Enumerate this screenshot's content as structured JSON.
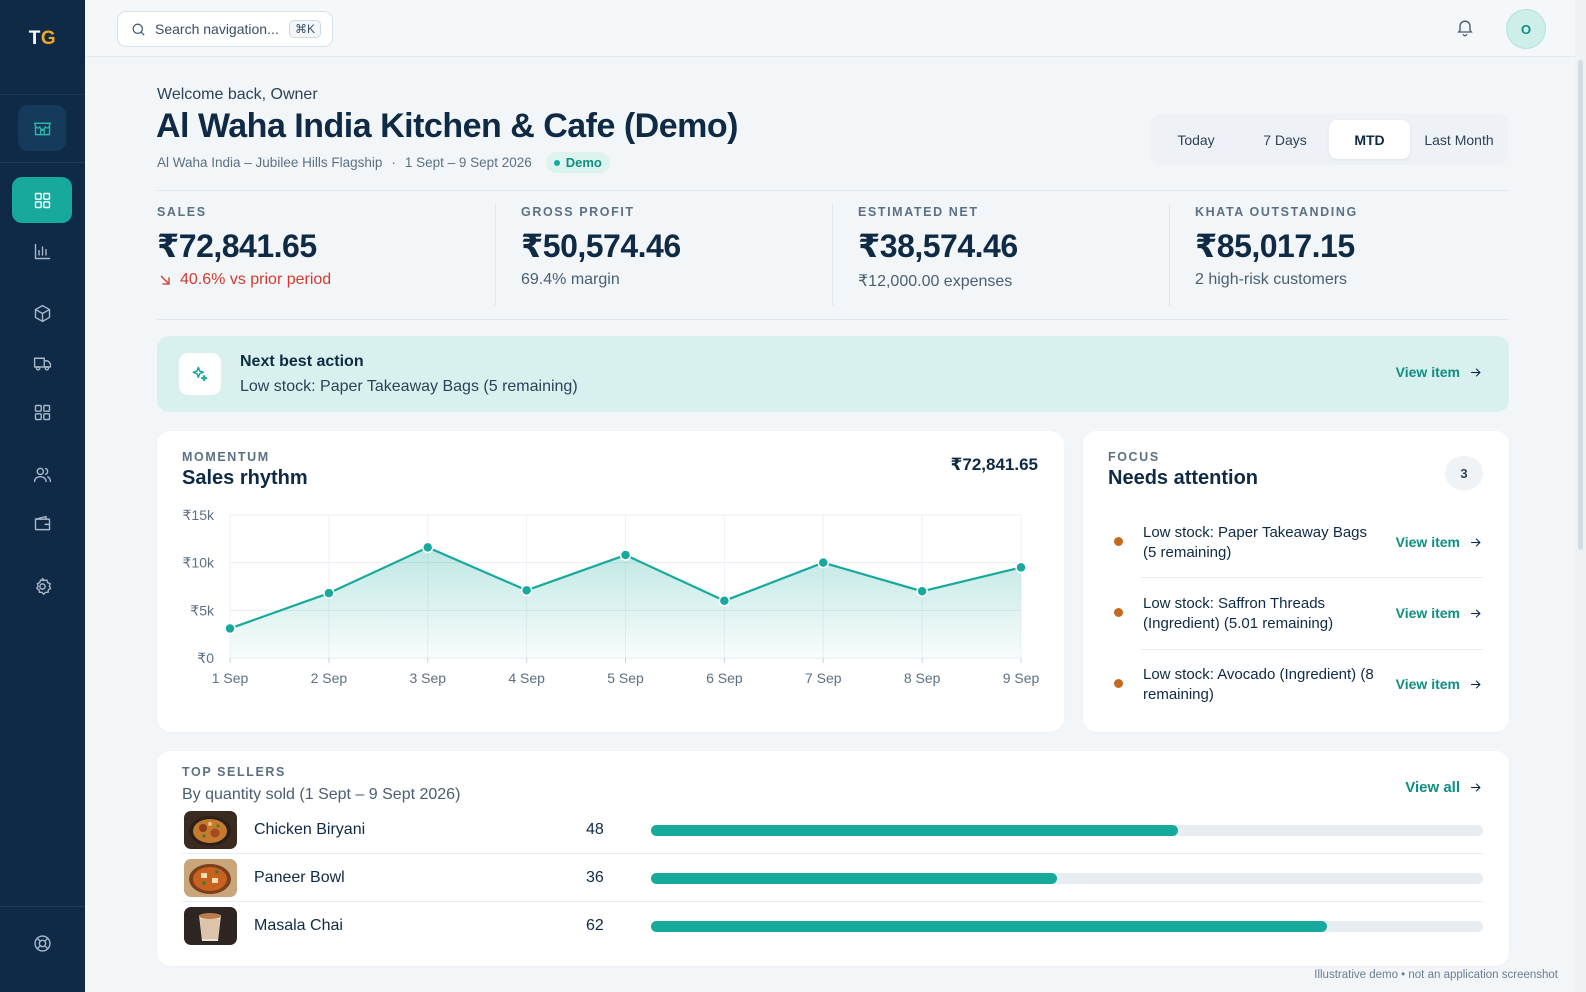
{
  "logo": {
    "text_t": "T",
    "text_g": "G"
  },
  "topbar": {
    "search_placeholder": "Search navigation...",
    "shortcut": "⌘K",
    "avatar_initial": "O"
  },
  "header": {
    "welcome": "Welcome back, Owner",
    "title": "Al Waha India Kitchen & Cafe (Demo)",
    "branch": "Al Waha India – Jubilee Hills Flagship",
    "separator": "·",
    "date_range": "1 Sept – 9 Sept 2026",
    "badge": "Demo"
  },
  "period": {
    "options": [
      "Today",
      "7 Days",
      "MTD",
      "Last Month"
    ],
    "selected": "MTD"
  },
  "kpis": [
    {
      "label": "SALES",
      "value": "₹72,841.65",
      "sub": "40.6% vs prior period",
      "trend": "down"
    },
    {
      "label": "GROSS PROFIT",
      "value": "₹50,574.46",
      "sub": "69.4% margin"
    },
    {
      "label": "ESTIMATED NET",
      "value": "₹38,574.46",
      "sub": "₹12,000.00 expenses"
    },
    {
      "label": "KHATA OUTSTANDING",
      "value": "₹85,017.15",
      "sub": "2 high-risk customers"
    }
  ],
  "next_best_action": {
    "title": "Next best action",
    "text": "Low stock: Paper Takeaway Bags (5 remaining)",
    "link": "View item"
  },
  "momentum": {
    "eyebrow": "MOMENTUM",
    "title": "Sales rhythm",
    "total": "₹72,841.65",
    "chart_data": {
      "type": "area",
      "categories": [
        "1 Sep",
        "2 Sep",
        "3 Sep",
        "4 Sep",
        "5 Sep",
        "6 Sep",
        "7 Sep",
        "8 Sep",
        "9 Sep"
      ],
      "values": [
        3100,
        6800,
        11600,
        7100,
        10800,
        6000,
        10000,
        7000,
        9500
      ],
      "ylim": [
        0,
        15000
      ],
      "yticks": [
        0,
        5000,
        10000,
        15000
      ],
      "ytick_labels": [
        "₹0",
        "₹5k",
        "₹10k",
        "₹15k"
      ],
      "grid": true,
      "color": "#17a99b"
    }
  },
  "focus": {
    "eyebrow": "FOCUS",
    "title": "Needs attention",
    "count": "3",
    "items": [
      {
        "text": "Low stock: Paper Takeaway Bags (5 remaining)",
        "link": "View item"
      },
      {
        "text": "Low stock: Saffron Threads (Ingredient) (5.01 remaining)",
        "link": "View item"
      },
      {
        "text": "Low stock: Avocado (Ingredient) (8 remaining)",
        "link": "View item"
      }
    ]
  },
  "top_sellers": {
    "eyebrow": "TOP SELLERS",
    "subtitle": "By quantity sold (1 Sept – 9 Sept 2026)",
    "view_all": "View all",
    "items": [
      {
        "name": "Chicken Biryani",
        "qty": "48",
        "bar_fraction": 0.634
      },
      {
        "name": "Paneer Bowl",
        "qty": "36",
        "bar_fraction": 0.488
      },
      {
        "name": "Masala Chai",
        "qty": "62",
        "bar_fraction": 0.813
      }
    ]
  },
  "footnote": "Illustrative demo • not an application screenshot",
  "colors": {
    "accent": "#17a99b",
    "sidebar": "#0e2a47",
    "warning_dot": "#c36a1e",
    "negative": "#d23a2e"
  }
}
